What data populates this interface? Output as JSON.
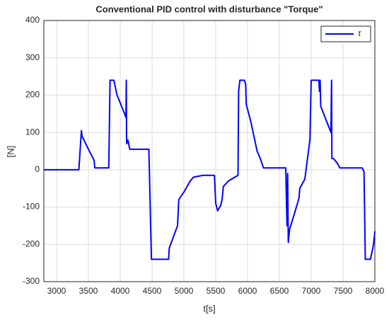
{
  "chart_data": {
    "type": "line",
    "title": "Conventional PID control with disturbance \"Torque\"",
    "x_label": "t[s]",
    "y_label": "[N]",
    "x": [
      2800,
      3350,
      3390,
      3400,
      3500,
      3590,
      3600,
      3800,
      3820,
      3840,
      3900,
      3950,
      4080,
      4090,
      4095,
      4100,
      4120,
      4150,
      4450,
      4490,
      4760,
      4770,
      4900,
      4920,
      5000,
      5100,
      5150,
      5300,
      5480,
      5500,
      5530,
      5580,
      5600,
      5620,
      5700,
      5800,
      5850,
      5860,
      5880,
      5950,
      5970,
      5980,
      6050,
      6150,
      6200,
      6250,
      6600,
      6620,
      6630,
      6640,
      6660,
      6750,
      6810,
      6820,
      6900,
      6980,
      7000,
      7120,
      7130,
      7140,
      7150,
      7310,
      7320,
      7325,
      7350,
      7400,
      7450,
      7800,
      7830,
      7850,
      7930,
      7980,
      8000
    ],
    "series": [
      {
        "name": "τ",
        "color": "#0000ff",
        "values": [
          0,
          0,
          105,
          90,
          55,
          25,
          5,
          5,
          5,
          240,
          240,
          200,
          145,
          140,
          240,
          70,
          80,
          55,
          55,
          -240,
          -240,
          -210,
          -150,
          -80,
          -60,
          -30,
          -20,
          -15,
          -15,
          -90,
          -110,
          -95,
          -80,
          -45,
          -30,
          -20,
          -15,
          210,
          240,
          240,
          230,
          175,
          130,
          50,
          30,
          5,
          5,
          -150,
          -10,
          -195,
          -160,
          -110,
          -75,
          -50,
          -25,
          80,
          240,
          240,
          210,
          240,
          170,
          100,
          240,
          30,
          30,
          20,
          5,
          5,
          -5,
          -240,
          -240,
          -200,
          -165
        ]
      }
    ],
    "xlim": [
      2800,
      8000
    ],
    "ylim": [
      -300,
      400
    ],
    "xticks": [
      3000,
      3500,
      4000,
      4500,
      5000,
      5500,
      6000,
      6500,
      7000,
      7500,
      8000
    ],
    "yticks": [
      -300,
      -200,
      -100,
      0,
      100,
      200,
      300,
      400
    ],
    "grid": true,
    "legend": "top-right"
  }
}
